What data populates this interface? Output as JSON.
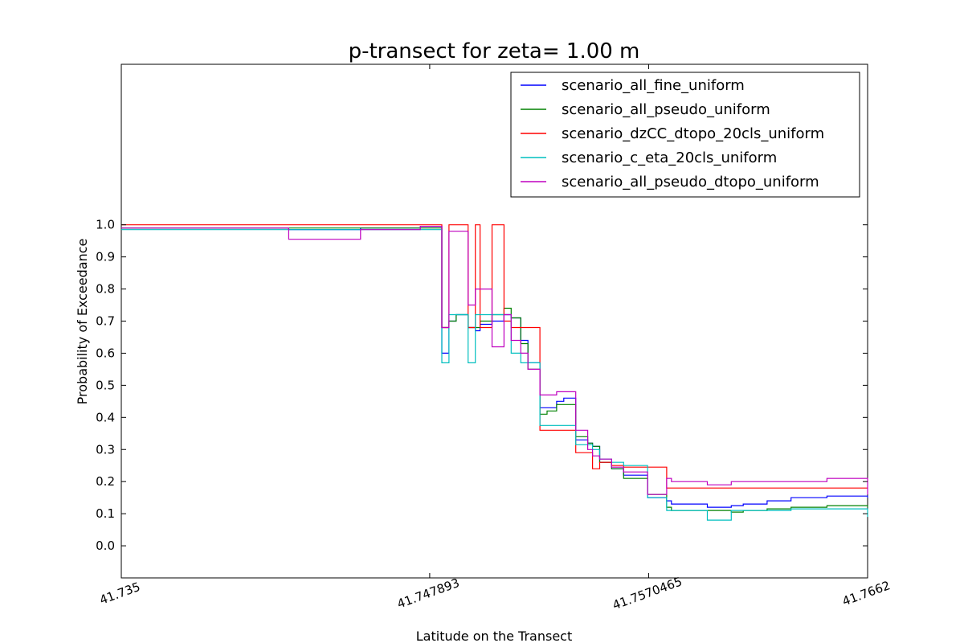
{
  "chart_data": {
    "type": "line",
    "title": "p-transect for zeta= 1.00 m",
    "xlabel": "Latitude on the Transect",
    "ylabel": "Probability of Exceedance",
    "xlim": [
      41.735,
      41.7662
    ],
    "ylim": [
      -0.1,
      1.5
    ],
    "x_ticks": [
      {
        "value": 41.735,
        "label": "41.735"
      },
      {
        "value": 41.747893,
        "label": "41.747893"
      },
      {
        "value": 41.7570465,
        "label": "41.7570465"
      },
      {
        "value": 41.7662,
        "label": "41.7662"
      }
    ],
    "y_ticks": [
      0.0,
      0.1,
      0.2,
      0.3,
      0.4,
      0.5,
      0.6,
      0.7,
      0.8,
      0.9,
      1.0
    ],
    "y_tick_labels": [
      "0.0",
      "0.1",
      "0.2",
      "0.3",
      "0.4",
      "0.5",
      "0.6",
      "0.7",
      "0.8",
      "0.9",
      "1.0"
    ],
    "grid": false,
    "legend_position": "top-right",
    "series": [
      {
        "name": "scenario_all_fine_uniform",
        "color": "#0000ff",
        "x": [
          41.735,
          41.7395,
          41.742,
          41.745,
          41.7475,
          41.7478,
          41.7481,
          41.7484,
          41.7487,
          41.749,
          41.7495,
          41.7498,
          41.75,
          41.7505,
          41.751,
          41.7513,
          41.7517,
          41.752,
          41.7525,
          41.7528,
          41.7532,
          41.7535,
          41.754,
          41.7545,
          41.7547,
          41.755,
          41.7555,
          41.756,
          41.757,
          41.7578,
          41.758,
          41.7595,
          41.7605,
          41.761,
          41.762,
          41.763,
          41.7645,
          41.7662
        ],
        "values": [
          0.99,
          0.99,
          0.985,
          0.99,
          0.995,
          0.995,
          0.995,
          0.6,
          0.7,
          0.72,
          0.68,
          0.67,
          0.69,
          0.7,
          0.72,
          0.71,
          0.64,
          0.57,
          0.43,
          0.43,
          0.45,
          0.46,
          0.33,
          0.32,
          0.31,
          0.26,
          0.24,
          0.22,
          0.15,
          0.14,
          0.13,
          0.12,
          0.125,
          0.13,
          0.14,
          0.15,
          0.155,
          0.15
        ]
      },
      {
        "name": "scenario_all_pseudo_uniform",
        "color": "#008000",
        "x": [
          41.735,
          41.7395,
          41.742,
          41.745,
          41.7475,
          41.7478,
          41.7481,
          41.7484,
          41.7487,
          41.749,
          41.7495,
          41.7498,
          41.75,
          41.7505,
          41.751,
          41.7513,
          41.7517,
          41.752,
          41.7525,
          41.7528,
          41.7532,
          41.7535,
          41.754,
          41.7545,
          41.7547,
          41.755,
          41.7555,
          41.756,
          41.757,
          41.7578,
          41.758,
          41.7595,
          41.7605,
          41.761,
          41.762,
          41.763,
          41.7645,
          41.7662
        ],
        "values": [
          0.99,
          0.99,
          0.99,
          0.99,
          0.99,
          0.99,
          0.99,
          0.68,
          0.7,
          0.72,
          0.68,
          0.68,
          0.7,
          0.72,
          0.74,
          0.71,
          0.63,
          0.55,
          0.41,
          0.42,
          0.44,
          0.44,
          0.34,
          0.32,
          0.31,
          0.26,
          0.24,
          0.21,
          0.16,
          0.12,
          0.11,
          0.11,
          0.105,
          0.11,
          0.115,
          0.12,
          0.125,
          0.12
        ]
      },
      {
        "name": "scenario_dzCC_dtopo_20cls_uniform",
        "color": "#ff0000",
        "x": [
          41.735,
          41.7395,
          41.742,
          41.745,
          41.7475,
          41.7478,
          41.7481,
          41.7484,
          41.7487,
          41.749,
          41.7495,
          41.7498,
          41.75,
          41.7505,
          41.751,
          41.7513,
          41.7517,
          41.752,
          41.7525,
          41.7528,
          41.7532,
          41.7535,
          41.754,
          41.7545,
          41.7547,
          41.755,
          41.7555,
          41.756,
          41.757,
          41.7578,
          41.758,
          41.7595,
          41.7605,
          41.761,
          41.762,
          41.763,
          41.7645,
          41.7662
        ],
        "values": [
          1.0,
          1.0,
          1.0,
          1.0,
          1.0,
          1.0,
          1.0,
          0.68,
          1.0,
          1.0,
          0.68,
          1.0,
          0.68,
          1.0,
          0.7,
          0.68,
          0.68,
          0.68,
          0.36,
          0.36,
          0.36,
          0.36,
          0.29,
          0.29,
          0.24,
          0.26,
          0.25,
          0.245,
          0.245,
          0.18,
          0.18,
          0.18,
          0.18,
          0.18,
          0.18,
          0.18,
          0.18,
          0.18
        ]
      },
      {
        "name": "scenario_c_eta_20cls_uniform",
        "color": "#00bfbf",
        "x": [
          41.735,
          41.7395,
          41.742,
          41.745,
          41.7475,
          41.7478,
          41.7481,
          41.7484,
          41.7487,
          41.749,
          41.7495,
          41.7498,
          41.75,
          41.7505,
          41.751,
          41.7513,
          41.7517,
          41.752,
          41.7525,
          41.7528,
          41.7532,
          41.7535,
          41.754,
          41.7545,
          41.7547,
          41.755,
          41.7555,
          41.756,
          41.757,
          41.7578,
          41.758,
          41.7595,
          41.7605,
          41.761,
          41.762,
          41.763,
          41.7645,
          41.7662
        ],
        "values": [
          0.985,
          0.985,
          0.985,
          0.985,
          0.985,
          0.985,
          0.985,
          0.57,
          0.72,
          0.72,
          0.57,
          0.72,
          0.72,
          0.72,
          0.72,
          0.6,
          0.57,
          0.57,
          0.375,
          0.375,
          0.375,
          0.375,
          0.315,
          0.315,
          0.3,
          0.27,
          0.26,
          0.25,
          0.15,
          0.11,
          0.11,
          0.08,
          0.11,
          0.11,
          0.11,
          0.115,
          0.115,
          0.09
        ]
      },
      {
        "name": "scenario_all_pseudo_dtopo_uniform",
        "color": "#bf00bf",
        "x": [
          41.735,
          41.7395,
          41.742,
          41.745,
          41.7475,
          41.7478,
          41.7481,
          41.7484,
          41.7487,
          41.749,
          41.7495,
          41.7498,
          41.75,
          41.7505,
          41.751,
          41.7513,
          41.7517,
          41.752,
          41.7525,
          41.7528,
          41.7532,
          41.7535,
          41.754,
          41.7545,
          41.7547,
          41.755,
          41.7555,
          41.756,
          41.757,
          41.7578,
          41.758,
          41.7595,
          41.7605,
          41.761,
          41.762,
          41.763,
          41.7645,
          41.7662
        ],
        "values": [
          0.99,
          0.99,
          0.955,
          0.985,
          0.995,
          0.995,
          0.995,
          0.68,
          0.98,
          0.98,
          0.75,
          0.8,
          0.8,
          0.62,
          0.72,
          0.64,
          0.6,
          0.55,
          0.47,
          0.47,
          0.48,
          0.48,
          0.36,
          0.3,
          0.28,
          0.27,
          0.245,
          0.23,
          0.16,
          0.21,
          0.2,
          0.19,
          0.2,
          0.2,
          0.2,
          0.2,
          0.21,
          0.16
        ]
      }
    ]
  }
}
